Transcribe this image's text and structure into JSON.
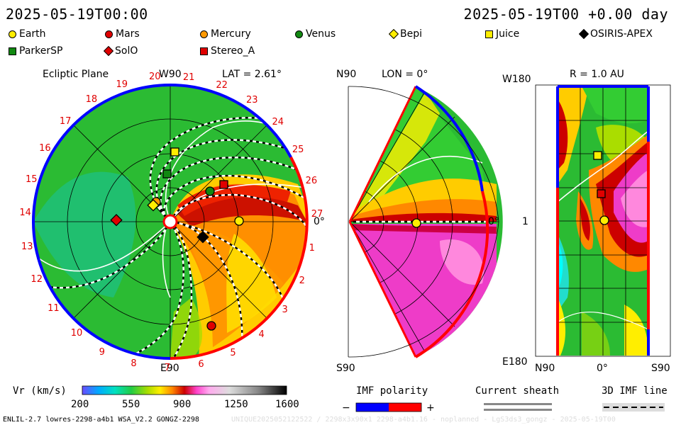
{
  "header": {
    "left_time": "2025-05-19T00:00",
    "right_time": "2025-05-19T00 +0.00 day"
  },
  "legend": [
    {
      "label": "Earth",
      "shape": "circle",
      "color": "#ffee00"
    },
    {
      "label": "Mars",
      "shape": "circle",
      "color": "#e00000"
    },
    {
      "label": "Mercury",
      "shape": "circle",
      "color": "#ff9900"
    },
    {
      "label": "Venus",
      "shape": "circle",
      "color": "#118811"
    },
    {
      "label": "Bepi",
      "shape": "diamond",
      "color": "#ffee00"
    },
    {
      "label": "Juice",
      "shape": "square",
      "color": "#ffee00"
    },
    {
      "label": "OSIRIS-APEX",
      "shape": "diamond",
      "color": "#000000"
    },
    {
      "label": "ParkerSP",
      "shape": "square",
      "color": "#118811"
    },
    {
      "label": "SolO",
      "shape": "diamond",
      "color": "#e00000"
    },
    {
      "label": "Stereo_A",
      "shape": "square",
      "color": "#e00000"
    }
  ],
  "ecliptic": {
    "title": "Ecliptic Plane",
    "lat": "LAT = 2.61°",
    "top_label": "W90",
    "bottom_label": "E90",
    "right_label": "0°",
    "carrington_numbers": [
      "1",
      "2",
      "3",
      "4",
      "5",
      "6",
      "7",
      "8",
      "9",
      "10",
      "11",
      "12",
      "13",
      "14",
      "15",
      "16",
      "17",
      "18",
      "19",
      "20",
      "21",
      "22",
      "23",
      "24",
      "25",
      "26",
      "27"
    ]
  },
  "meridional": {
    "title": "LON = 0°",
    "top_label": "N90",
    "bottom_label": "S90",
    "right_label": "0°"
  },
  "radial": {
    "title": "R = 1.0 AU",
    "top_left": "W180",
    "bottom_left": "E180",
    "mid_left": "1",
    "x_left": "N90",
    "x_mid": "0°",
    "x_right": "S90"
  },
  "colorbar": {
    "label": "Vr (km/s)",
    "ticks": [
      "200",
      "550",
      "900",
      "1250",
      "1600"
    ]
  },
  "imf": {
    "title": "IMF polarity",
    "minus": "−",
    "plus": "+",
    "minus_color": "#0000ff",
    "plus_color": "#ff0000"
  },
  "sheath": {
    "title": "Current sheath"
  },
  "imfline": {
    "title": "3D IMF line"
  },
  "footer": {
    "left": "ENLIL-2.7 lowres-2298-a4b1 WSA_V2.2 GONGZ-2298",
    "right": "UNIQUE2025052122522 / 2298x3x90x1 2298-a4b1.16 - noplanned - LgS3ds3_gongz - 2025-05-19T00"
  }
}
